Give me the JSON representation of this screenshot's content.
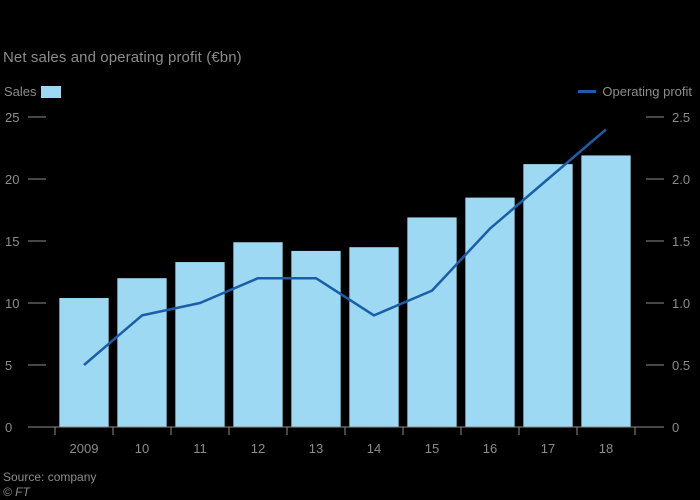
{
  "title": "Net sales and operating profit (€bn)",
  "legend": {
    "sales": "Sales",
    "profit": "Operating profit"
  },
  "source": "Source: company",
  "credit": "© FT",
  "colors": {
    "bar": "#9dd9f2",
    "line": "#1a5ea8",
    "axis": "#8c8c8c",
    "background": "#000000"
  },
  "chart_data": {
    "type": "bar",
    "title": "Net sales and operating profit (€bn)",
    "categories": [
      "2009",
      "10",
      "11",
      "12",
      "13",
      "14",
      "15",
      "16",
      "17",
      "18"
    ],
    "series": [
      {
        "name": "Sales",
        "type": "bar",
        "axis": "left",
        "values": [
          10.4,
          12.0,
          13.3,
          14.9,
          14.2,
          14.5,
          16.9,
          18.5,
          21.2,
          21.9
        ]
      },
      {
        "name": "Operating profit",
        "type": "line",
        "axis": "right",
        "values": [
          0.5,
          0.9,
          1.0,
          1.2,
          1.2,
          0.9,
          1.1,
          1.6,
          2.0,
          2.4
        ]
      }
    ],
    "ylim_left": [
      0,
      25
    ],
    "yticks_left": [
      "0",
      "5",
      "10",
      "15",
      "20",
      "25"
    ],
    "ylim_right": [
      0,
      2.5
    ],
    "yticks_right": [
      "0",
      "0.5",
      "1.0",
      "1.5",
      "2.0",
      "2.5"
    ],
    "legend_position": "top",
    "grid": false
  }
}
